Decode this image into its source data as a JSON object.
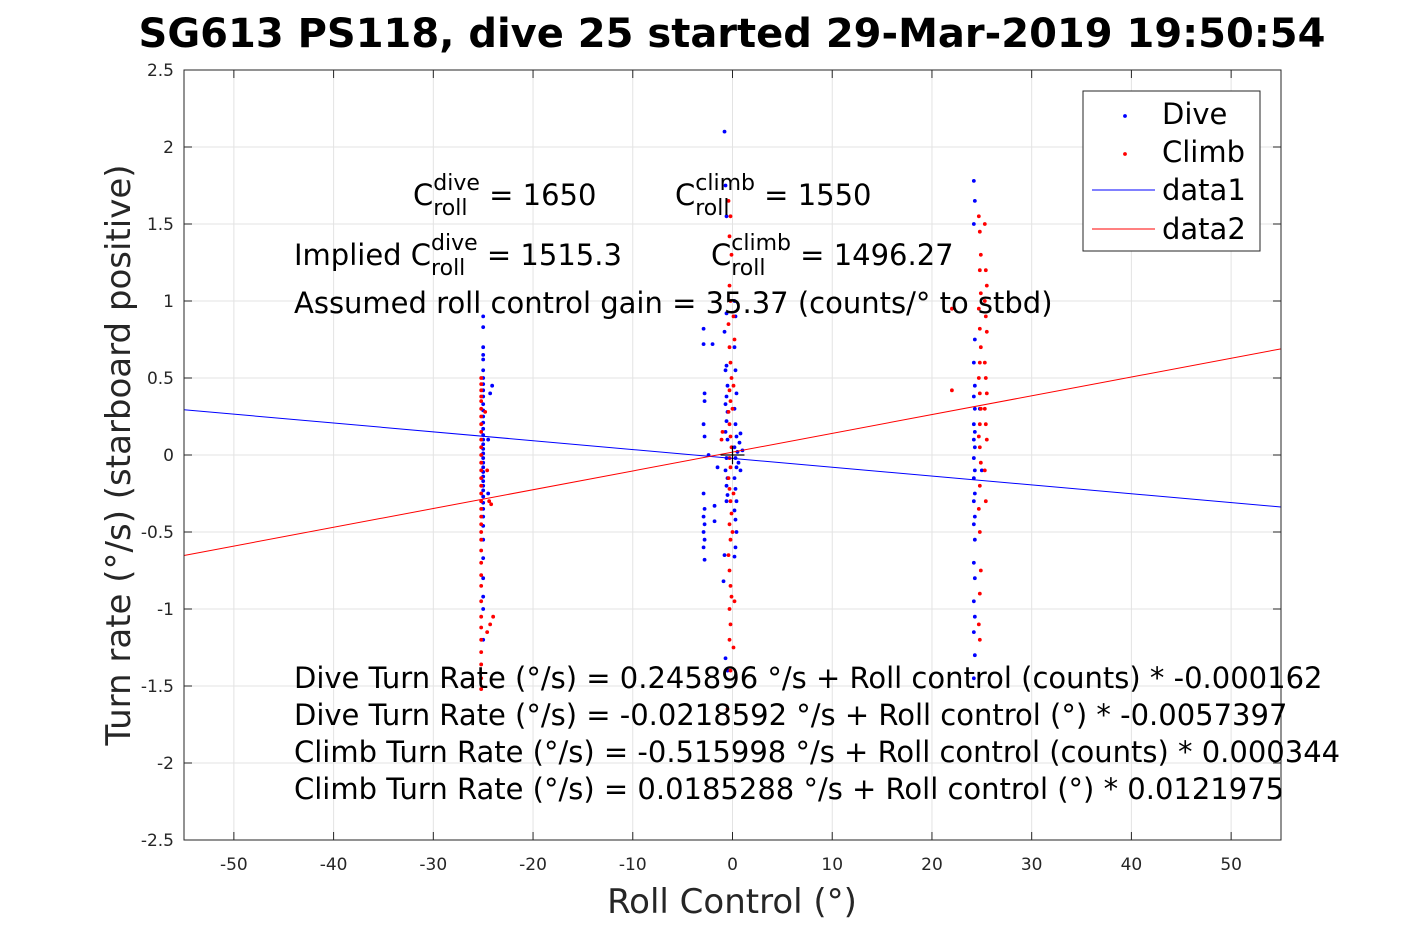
{
  "colors": {
    "dive": "#0000ff",
    "climb": "#ff0000",
    "data1": "#0000ff",
    "data2": "#ff0000",
    "grid": "#e3e3e3",
    "axis": "#262626"
  },
  "chart_data": {
    "type": "scatter",
    "title": "SG613 PS118, dive 25 started 29-Mar-2019 19:50:54",
    "xlabel": "Roll Control (°)",
    "ylabel": "Turn rate (°/s) (starboard positive)",
    "xlim": [
      -55,
      55
    ],
    "ylim": [
      -2.5,
      2.5
    ],
    "xticks": [
      -50,
      -40,
      -30,
      -20,
      -10,
      0,
      10,
      20,
      30,
      40,
      50
    ],
    "xtick_labels": [
      "-50",
      "-40",
      "-30",
      "-20",
      "-10",
      "0",
      "10",
      "20",
      "30",
      "40",
      "50"
    ],
    "yticks": [
      -2.5,
      -2,
      -1.5,
      -1,
      -0.5,
      0,
      0.5,
      1,
      1.5,
      2,
      2.5
    ],
    "ytick_labels": [
      "-2.5",
      "-2",
      "-1.5",
      "-1",
      "-0.5",
      "0",
      "0.5",
      "1",
      "1.5",
      "2",
      "2.5"
    ],
    "grid": true,
    "legend_position": "top-right",
    "legend": [
      "Dive",
      "Climb",
      "data1",
      "data2"
    ],
    "series": [
      {
        "name": "Dive",
        "kind": "points",
        "points": [
          [
            -25,
            0.9
          ],
          [
            -25,
            0.83
          ],
          [
            -25,
            0.7
          ],
          [
            -25,
            0.65
          ],
          [
            -25,
            0.62
          ],
          [
            -25,
            0.55
          ],
          [
            -25,
            0.5
          ],
          [
            -25,
            0.46
          ],
          [
            -25,
            0.42
          ],
          [
            -25,
            0.38
          ],
          [
            -25,
            0.33
          ],
          [
            -25,
            0.29
          ],
          [
            -25,
            0.25
          ],
          [
            -25,
            0.21
          ],
          [
            -25,
            0.17
          ],
          [
            -25,
            0.13
          ],
          [
            -25,
            0.1
          ],
          [
            -25,
            0.07
          ],
          [
            -25,
            0.04
          ],
          [
            -25,
            0.01
          ],
          [
            -25,
            -0.02
          ],
          [
            -25,
            -0.05
          ],
          [
            -25,
            -0.08
          ],
          [
            -25,
            -0.11
          ],
          [
            -25,
            -0.14
          ],
          [
            -25,
            -0.17
          ],
          [
            -25,
            -0.2
          ],
          [
            -25,
            -0.23
          ],
          [
            -25,
            -0.27
          ],
          [
            -25,
            -0.31
          ],
          [
            -25,
            -0.35
          ],
          [
            -25,
            -0.4
          ],
          [
            -25,
            -0.46
          ],
          [
            -25,
            -0.55
          ],
          [
            -25,
            -0.67
          ],
          [
            -25,
            -0.8
          ],
          [
            -25,
            -0.92
          ],
          [
            -25,
            -1.0
          ],
          [
            -25,
            -1.2
          ],
          [
            -24.5,
            0.1
          ],
          [
            -24.3,
            0.4
          ],
          [
            -24.1,
            0.45
          ],
          [
            -24.5,
            -0.25
          ],
          [
            -2.9,
            0.82
          ],
          [
            -2.9,
            0.72
          ],
          [
            -2.8,
            0.4
          ],
          [
            -2.8,
            0.35
          ],
          [
            -2.9,
            0.2
          ],
          [
            -2.8,
            0.12
          ],
          [
            -2.9,
            -0.25
          ],
          [
            -2.8,
            -0.35
          ],
          [
            -2.9,
            -0.4
          ],
          [
            -2.8,
            -0.45
          ],
          [
            -2.9,
            -0.5
          ],
          [
            -2.8,
            -0.55
          ],
          [
            -2.9,
            -0.6
          ],
          [
            -2.8,
            -0.68
          ],
          [
            -2.4,
            0.0
          ],
          [
            -2.0,
            0.72
          ],
          [
            -1.8,
            -0.33
          ],
          [
            -1.8,
            -0.43
          ],
          [
            -1.5,
            -0.08
          ],
          [
            -0.8,
            2.1
          ],
          [
            -0.7,
            1.75
          ],
          [
            -0.6,
            1.55
          ],
          [
            -0.6,
            0.92
          ],
          [
            -0.8,
            0.8
          ],
          [
            -0.6,
            0.58
          ],
          [
            -0.7,
            0.55
          ],
          [
            -0.5,
            0.45
          ],
          [
            -0.6,
            0.38
          ],
          [
            -0.7,
            0.33
          ],
          [
            -0.5,
            0.28
          ],
          [
            -0.6,
            0.22
          ],
          [
            -0.7,
            0.15
          ],
          [
            -0.5,
            0.1
          ],
          [
            -0.6,
            -0.02
          ],
          [
            -0.7,
            -0.1
          ],
          [
            -0.5,
            -0.15
          ],
          [
            -0.6,
            -0.2
          ],
          [
            -0.5,
            -0.26
          ],
          [
            -0.6,
            -0.3
          ],
          [
            -0.8,
            -0.65
          ],
          [
            -0.9,
            -0.82
          ],
          [
            -0.7,
            -1.32
          ],
          [
            -0.5,
            -1.4
          ],
          [
            0.2,
            1.0
          ],
          [
            0.3,
            0.9
          ],
          [
            0.2,
            0.7
          ],
          [
            0.3,
            0.55
          ],
          [
            0.4,
            0.4
          ],
          [
            0.2,
            0.3
          ],
          [
            0.3,
            0.2
          ],
          [
            0.4,
            0.12
          ],
          [
            0.2,
            0.05
          ],
          [
            0.3,
            -0.02
          ],
          [
            0.4,
            -0.08
          ],
          [
            0.2,
            -0.15
          ],
          [
            0.3,
            -0.22
          ],
          [
            0.4,
            -0.3
          ],
          [
            0.2,
            -0.36
          ],
          [
            0.3,
            -0.42
          ],
          [
            0.4,
            -0.5
          ],
          [
            0.3,
            -0.6
          ],
          [
            0.2,
            -0.66
          ],
          [
            0.5,
            0.02
          ],
          [
            0.6,
            -0.05
          ],
          [
            0.7,
            0.08
          ],
          [
            0.8,
            -0.1
          ],
          [
            1.0,
            0.03
          ],
          [
            0.8,
            0.14
          ],
          [
            24.2,
            1.78
          ],
          [
            24.3,
            1.65
          ],
          [
            24.2,
            1.5
          ],
          [
            24.3,
            0.75
          ],
          [
            24.2,
            0.6
          ],
          [
            24.3,
            0.45
          ],
          [
            24.2,
            0.38
          ],
          [
            24.3,
            0.3
          ],
          [
            24.2,
            0.2
          ],
          [
            24.3,
            0.15
          ],
          [
            24.2,
            0.1
          ],
          [
            24.3,
            0.05
          ],
          [
            24.2,
            -0.02
          ],
          [
            24.3,
            -0.1
          ],
          [
            24.2,
            -0.15
          ],
          [
            24.3,
            -0.25
          ],
          [
            24.2,
            -0.3
          ],
          [
            24.3,
            -0.4
          ],
          [
            24.2,
            -0.45
          ],
          [
            24.3,
            -0.55
          ],
          [
            24.2,
            -0.7
          ],
          [
            24.3,
            -0.8
          ],
          [
            24.2,
            -0.95
          ],
          [
            24.3,
            -1.05
          ],
          [
            24.2,
            -1.15
          ],
          [
            24.3,
            -1.3
          ],
          [
            24.2,
            -1.45
          ],
          [
            24.8,
            0.3
          ],
          [
            25.0,
            -0.1
          ]
        ]
      },
      {
        "name": "Climb",
        "kind": "points",
        "points": [
          [
            -25.2,
            0.5
          ],
          [
            -25.2,
            0.46
          ],
          [
            -25.2,
            0.42
          ],
          [
            -25.2,
            0.38
          ],
          [
            -25.2,
            0.35
          ],
          [
            -25.2,
            0.3
          ],
          [
            -25.2,
            0.25
          ],
          [
            -25.2,
            0.2
          ],
          [
            -25.2,
            0.15
          ],
          [
            -25.2,
            0.1
          ],
          [
            -25.2,
            0.05
          ],
          [
            -25.2,
            0.0
          ],
          [
            -25.2,
            -0.05
          ],
          [
            -25.2,
            -0.1
          ],
          [
            -25.2,
            -0.15
          ],
          [
            -25.2,
            -0.2
          ],
          [
            -25.2,
            -0.25
          ],
          [
            -25.2,
            -0.3
          ],
          [
            -25.2,
            -0.35
          ],
          [
            -25.2,
            -0.4
          ],
          [
            -25.2,
            -0.45
          ],
          [
            -25.2,
            -0.5
          ],
          [
            -25.2,
            -0.55
          ],
          [
            -25.2,
            -0.62
          ],
          [
            -25.2,
            -0.7
          ],
          [
            -25.2,
            -0.78
          ],
          [
            -25.2,
            -0.85
          ],
          [
            -25.2,
            -0.95
          ],
          [
            -25.2,
            -1.05
          ],
          [
            -25.2,
            -1.12
          ],
          [
            -25.2,
            -1.2
          ],
          [
            -25.2,
            -1.28
          ],
          [
            -25.2,
            -1.36
          ],
          [
            -25.2,
            -1.45
          ],
          [
            -25.2,
            -1.52
          ],
          [
            -24.8,
            0.28
          ],
          [
            -24.6,
            -0.1
          ],
          [
            -24.4,
            -0.3
          ],
          [
            -24.2,
            -0.32
          ],
          [
            -24.0,
            -1.05
          ],
          [
            -24.3,
            -1.1
          ],
          [
            -24.6,
            -1.15
          ],
          [
            -0.4,
            1.65
          ],
          [
            -0.2,
            1.55
          ],
          [
            -0.3,
            1.42
          ],
          [
            -0.1,
            1.3
          ],
          [
            -0.3,
            1.1
          ],
          [
            -0.2,
            1.0
          ],
          [
            -0.4,
            0.85
          ],
          [
            -0.3,
            0.7
          ],
          [
            -0.2,
            0.6
          ],
          [
            -0.1,
            0.5
          ],
          [
            -0.3,
            0.42
          ],
          [
            -0.2,
            0.35
          ],
          [
            -0.4,
            0.28
          ],
          [
            -0.3,
            0.2
          ],
          [
            -0.2,
            0.12
          ],
          [
            -0.1,
            0.05
          ],
          [
            -0.3,
            -0.02
          ],
          [
            -0.2,
            -0.08
          ],
          [
            -0.4,
            -0.15
          ],
          [
            -0.3,
            -0.22
          ],
          [
            -0.2,
            -0.3
          ],
          [
            -0.1,
            -0.38
          ],
          [
            -0.3,
            -0.45
          ],
          [
            -0.2,
            -0.55
          ],
          [
            -0.4,
            -0.65
          ],
          [
            -0.3,
            -0.75
          ],
          [
            -0.2,
            -0.85
          ],
          [
            -0.1,
            -0.92
          ],
          [
            -0.3,
            -1.0
          ],
          [
            -0.2,
            -1.1
          ],
          [
            -0.3,
            -1.2
          ],
          [
            -0.2,
            -1.4
          ],
          [
            -1.0,
            0.15
          ],
          [
            -1.1,
            0.1
          ],
          [
            0.1,
            0.9
          ],
          [
            0.2,
            0.75
          ],
          [
            0.1,
            0.45
          ],
          [
            0.0,
            0.3
          ],
          [
            0.1,
            -0.25
          ],
          [
            0.0,
            -0.5
          ],
          [
            0.2,
            -0.95
          ],
          [
            0.1,
            -1.25
          ],
          [
            -0.5,
            -1.65
          ],
          [
            22.0,
            0.42
          ],
          [
            22.0,
            0.95
          ],
          [
            24.7,
            1.55
          ],
          [
            24.8,
            1.45
          ],
          [
            24.9,
            1.3
          ],
          [
            24.8,
            1.2
          ],
          [
            24.9,
            1.05
          ],
          [
            24.7,
            0.95
          ],
          [
            24.8,
            0.82
          ],
          [
            24.9,
            0.7
          ],
          [
            24.8,
            0.6
          ],
          [
            24.7,
            0.5
          ],
          [
            24.8,
            0.4
          ],
          [
            24.9,
            0.3
          ],
          [
            24.8,
            0.2
          ],
          [
            24.7,
            0.12
          ],
          [
            24.8,
            0.05
          ],
          [
            24.9,
            -0.05
          ],
          [
            24.8,
            -0.2
          ],
          [
            24.7,
            -0.35
          ],
          [
            24.8,
            -0.5
          ],
          [
            24.9,
            -0.75
          ],
          [
            24.8,
            -0.9
          ],
          [
            24.7,
            -1.1
          ],
          [
            24.8,
            -1.2
          ],
          [
            25.3,
            1.5
          ],
          [
            25.4,
            1.2
          ],
          [
            25.5,
            1.1
          ],
          [
            25.3,
            1.0
          ],
          [
            25.4,
            0.9
          ],
          [
            25.5,
            0.8
          ],
          [
            25.3,
            0.6
          ],
          [
            25.4,
            0.5
          ],
          [
            25.5,
            0.4
          ],
          [
            25.3,
            0.3
          ],
          [
            25.4,
            0.2
          ],
          [
            25.5,
            0.1
          ],
          [
            25.3,
            -0.1
          ],
          [
            25.4,
            -0.3
          ]
        ]
      },
      {
        "name": "data1",
        "kind": "line",
        "points": [
          [
            -55,
            0.2938
          ],
          [
            55,
            -0.3376
          ]
        ]
      },
      {
        "name": "data2",
        "kind": "line",
        "points": [
          [
            -55,
            -0.6523
          ],
          [
            55,
            0.6893
          ]
        ]
      }
    ],
    "annotations": [
      {
        "parts": [
          [
            "C",
            ""
          ],
          [
            "roll",
            "sub"
          ],
          [
            "dive",
            "sup"
          ],
          [
            " = 1650",
            ""
          ]
        ]
      },
      {
        "parts": [
          [
            "C",
            ""
          ],
          [
            "roll",
            "sub"
          ],
          [
            "climb",
            "sup"
          ],
          [
            " = 1550",
            ""
          ]
        ]
      },
      {
        "parts": [
          [
            "Implied C",
            ""
          ],
          [
            "roll",
            "sub"
          ],
          [
            "dive",
            "sup"
          ],
          [
            " = 1515.3",
            ""
          ]
        ]
      },
      {
        "parts": [
          [
            "C",
            ""
          ],
          [
            "roll",
            "sub"
          ],
          [
            "climb",
            "sup"
          ],
          [
            " = 1496.27",
            ""
          ]
        ]
      },
      {
        "parts": [
          [
            "Assumed roll control gain = 35.37 (counts/° to stbd)",
            ""
          ]
        ]
      },
      {
        "parts": [
          [
            "Dive Turn Rate (°/s) = 0.245896 °/s + Roll control (counts) * -0.000162",
            ""
          ]
        ]
      },
      {
        "parts": [
          [
            "Dive Turn Rate (°/s) = -0.0218592 °/s + Roll control (°) * -0.0057397",
            ""
          ]
        ]
      },
      {
        "parts": [
          [
            "Climb Turn Rate (°/s) = -0.515998 °/s + Roll control (counts) * 0.000344",
            ""
          ]
        ]
      },
      {
        "parts": [
          [
            "Climb Turn Rate (°/s) = 0.0185288 °/s + Roll control (°) * 0.0121975",
            ""
          ]
        ]
      }
    ]
  }
}
